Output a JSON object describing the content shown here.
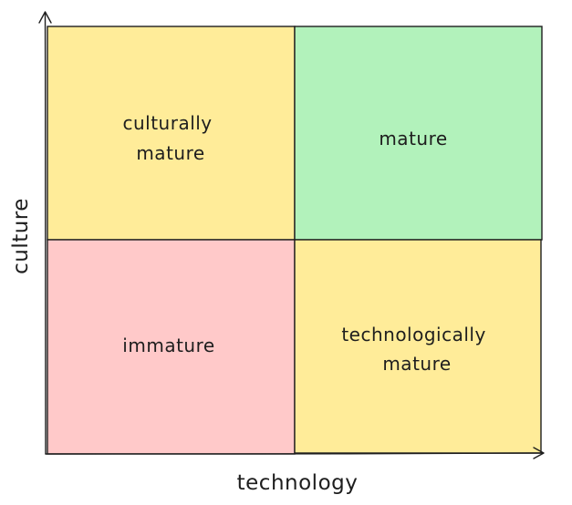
{
  "colors": {
    "yellow": "#ffec99",
    "green": "#b2f2bb",
    "red": "#ffc9c9",
    "stroke": "#1e1e1e"
  },
  "quadrants": {
    "top_left": {
      "lines": [
        "culturally",
        "mature"
      ],
      "color": "#ffec99"
    },
    "top_right": {
      "lines": [
        "mature"
      ],
      "color": "#b2f2bb"
    },
    "bottom_left": {
      "lines": [
        "immature"
      ],
      "color": "#ffc9c9"
    },
    "bottom_right": {
      "lines": [
        "technologically",
        "mature"
      ],
      "color": "#ffec99"
    }
  },
  "axes": {
    "x_label": "technology",
    "y_label": "culture"
  }
}
